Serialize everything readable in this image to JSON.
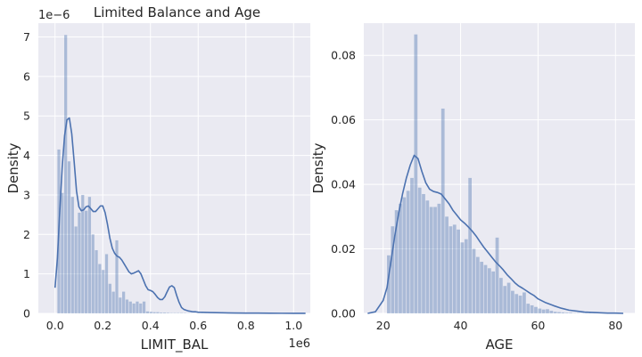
{
  "figure": {
    "background": "#ffffff",
    "axes_background": "#eaeaf2",
    "grid_color": "#ffffff"
  },
  "chart_data": [
    {
      "type": "histogram",
      "title": "Limited Balance and Age",
      "xlabel": "LIMIT_BAL",
      "ylabel": "Density",
      "x_offset_text": "1e6",
      "y_offset_text": "1e−6",
      "xlim": [
        -0.07,
        1.07
      ],
      "ylim": [
        0,
        7.35
      ],
      "xticks": [
        0.0,
        0.2,
        0.4,
        0.6,
        0.8,
        1.0
      ],
      "xtick_labels": [
        "0.0",
        "0.2",
        "0.4",
        "0.6",
        "0.8",
        "1.0"
      ],
      "yticks": [
        0,
        1,
        2,
        3,
        4,
        5,
        6,
        7
      ],
      "ytick_labels": [
        "0",
        "1",
        "2",
        "3",
        "4",
        "5",
        "6",
        "7"
      ],
      "grid": true,
      "bar_color": "#4c72b0",
      "bar_opacity": 0.4,
      "line_color": "#4c72b0",
      "bins": {
        "edges": [
          0.01,
          0.0243,
          0.0386,
          0.0529,
          0.0671,
          0.0814,
          0.0957,
          0.11,
          0.1243,
          0.1386,
          0.1529,
          0.1671,
          0.1814,
          0.1957,
          0.21,
          0.2243,
          0.2386,
          0.2529,
          0.2671,
          0.2814,
          0.2957,
          0.31,
          0.3243,
          0.3386,
          0.3529,
          0.3671,
          0.3814,
          0.3957,
          0.41,
          0.4243,
          0.4386,
          0.4529,
          0.4671,
          0.4814,
          0.4957,
          0.51,
          0.5243,
          0.5386,
          0.5529,
          0.5671,
          0.5814,
          0.5957,
          0.61,
          0.6243,
          0.6386,
          0.6529,
          0.6671,
          0.6814,
          0.6957,
          0.71,
          0.7243,
          0.7386,
          0.7529,
          0.7671,
          0.7814,
          0.7957,
          0.81,
          0.8243,
          0.8386,
          0.8529,
          0.8671,
          0.8814,
          0.8957,
          0.91,
          0.9243,
          0.9386,
          0.9529,
          0.9671,
          0.9814,
          0.9957,
          1.01
        ],
        "density": [
          4.15,
          3.05,
          7.05,
          3.85,
          2.95,
          2.2,
          2.55,
          3.0,
          2.6,
          2.95,
          2.0,
          1.6,
          1.25,
          1.1,
          1.5,
          0.75,
          0.55,
          1.85,
          0.4,
          0.55,
          0.35,
          0.3,
          0.25,
          0.3,
          0.25,
          0.3,
          0.05,
          0.04,
          0.03,
          0.03,
          0.02,
          0.02,
          0.015,
          0.01,
          0.01,
          0.01,
          0.01,
          0.008,
          0.006,
          0.005,
          0.004,
          0.004,
          0.003,
          0.003,
          0.003,
          0.002,
          0.002,
          0.002,
          0.002,
          0.002,
          0.001,
          0.001,
          0.001,
          0.001,
          0.001,
          0.001,
          0.001,
          0.001,
          0.001,
          0.001,
          0.001,
          0.001,
          0.001,
          0.001,
          0.001,
          0.001,
          0.001,
          0.001,
          0.001,
          0.001
        ]
      },
      "kde": {
        "x": [
          0.0,
          0.01,
          0.02,
          0.03,
          0.04,
          0.05,
          0.06,
          0.07,
          0.08,
          0.09,
          0.1,
          0.11,
          0.12,
          0.13,
          0.14,
          0.15,
          0.16,
          0.17,
          0.18,
          0.19,
          0.2,
          0.21,
          0.22,
          0.23,
          0.24,
          0.25,
          0.26,
          0.27,
          0.28,
          0.29,
          0.3,
          0.31,
          0.32,
          0.33,
          0.34,
          0.35,
          0.36,
          0.37,
          0.38,
          0.39,
          0.4,
          0.41,
          0.42,
          0.43,
          0.44,
          0.45,
          0.46,
          0.47,
          0.48,
          0.49,
          0.5,
          0.51,
          0.52,
          0.53,
          0.54,
          0.55,
          0.56,
          0.57,
          0.58,
          0.59,
          0.6,
          0.65,
          0.7,
          0.75,
          0.8,
          0.85,
          0.9,
          0.95,
          1.0,
          1.05
        ],
        "density": [
          0.65,
          1.4,
          2.6,
          3.7,
          4.5,
          4.9,
          4.95,
          4.55,
          3.85,
          3.1,
          2.7,
          2.6,
          2.62,
          2.7,
          2.72,
          2.65,
          2.58,
          2.58,
          2.65,
          2.72,
          2.72,
          2.55,
          2.25,
          1.9,
          1.65,
          1.52,
          1.45,
          1.42,
          1.35,
          1.25,
          1.15,
          1.05,
          1.0,
          1.02,
          1.05,
          1.08,
          1.0,
          0.85,
          0.7,
          0.6,
          0.58,
          0.55,
          0.48,
          0.4,
          0.35,
          0.35,
          0.42,
          0.55,
          0.67,
          0.7,
          0.65,
          0.45,
          0.28,
          0.15,
          0.1,
          0.08,
          0.06,
          0.05,
          0.04,
          0.04,
          0.03,
          0.02,
          0.015,
          0.01,
          0.008,
          0.006,
          0.004,
          0.003,
          0.002,
          0.001
        ]
      }
    },
    {
      "type": "histogram",
      "title": "",
      "xlabel": "AGE",
      "ylabel": "Density",
      "xlim": [
        15,
        85
      ],
      "ylim": [
        0,
        0.09
      ],
      "xticks": [
        20,
        40,
        60,
        80
      ],
      "xtick_labels": [
        "20",
        "40",
        "60",
        "80"
      ],
      "yticks": [
        0.0,
        0.02,
        0.04,
        0.06,
        0.08
      ],
      "ytick_labels": [
        "0.00",
        "0.02",
        "0.04",
        "0.06",
        "0.08"
      ],
      "grid": true,
      "bar_color": "#4c72b0",
      "bar_opacity": 0.4,
      "line_color": "#4c72b0",
      "bins": {
        "edges": [
          21,
          22,
          23,
          24,
          25,
          26,
          27,
          28,
          29,
          30,
          31,
          32,
          33,
          34,
          35,
          36,
          37,
          38,
          39,
          40,
          41,
          42,
          43,
          44,
          45,
          46,
          47,
          48,
          49,
          50,
          51,
          52,
          53,
          54,
          55,
          56,
          57,
          58,
          59,
          60,
          61,
          62,
          63,
          64,
          65,
          66,
          67,
          68,
          69,
          70,
          71,
          72,
          73,
          74,
          75,
          76,
          77,
          78,
          79
        ],
        "density": [
          0.018,
          0.027,
          0.032,
          0.034,
          0.036,
          0.038,
          0.042,
          0.0865,
          0.039,
          0.037,
          0.035,
          0.033,
          0.033,
          0.034,
          0.0635,
          0.03,
          0.027,
          0.0275,
          0.026,
          0.022,
          0.023,
          0.042,
          0.02,
          0.0175,
          0.016,
          0.015,
          0.014,
          0.013,
          0.0235,
          0.011,
          0.0085,
          0.0095,
          0.007,
          0.006,
          0.0055,
          0.0065,
          0.003,
          0.0025,
          0.002,
          0.0015,
          0.0012,
          0.0013,
          0.0008,
          0.0005,
          0.0004,
          0.0003,
          0.0002,
          0.0002,
          0.0001,
          0.0001,
          0.0001,
          0.0001,
          0.0001,
          0.0001,
          0.0001,
          0.0001,
          0.0001,
          0.0001
        ]
      },
      "kde": {
        "x": [
          16,
          18,
          20,
          21,
          22,
          23,
          24,
          25,
          26,
          27,
          28,
          29,
          30,
          31,
          32,
          33,
          34,
          35,
          36,
          37,
          38,
          39,
          40,
          41,
          42,
          43,
          44,
          45,
          46,
          47,
          48,
          49,
          50,
          51,
          52,
          53,
          54,
          55,
          56,
          57,
          58,
          59,
          60,
          62,
          64,
          66,
          68,
          70,
          72,
          74,
          76,
          78,
          80,
          82
        ],
        "density": [
          0.0,
          0.0005,
          0.004,
          0.008,
          0.016,
          0.024,
          0.031,
          0.037,
          0.042,
          0.046,
          0.049,
          0.048,
          0.044,
          0.0405,
          0.0385,
          0.0378,
          0.0375,
          0.037,
          0.0355,
          0.034,
          0.032,
          0.0305,
          0.029,
          0.028,
          0.0268,
          0.0255,
          0.024,
          0.0222,
          0.0205,
          0.019,
          0.0175,
          0.016,
          0.0148,
          0.0135,
          0.012,
          0.0108,
          0.0095,
          0.0085,
          0.0078,
          0.007,
          0.0062,
          0.0055,
          0.0045,
          0.0033,
          0.0024,
          0.0016,
          0.001,
          0.0007,
          0.0004,
          0.0003,
          0.0002,
          0.0001,
          0.0001,
          0.0
        ]
      }
    }
  ]
}
